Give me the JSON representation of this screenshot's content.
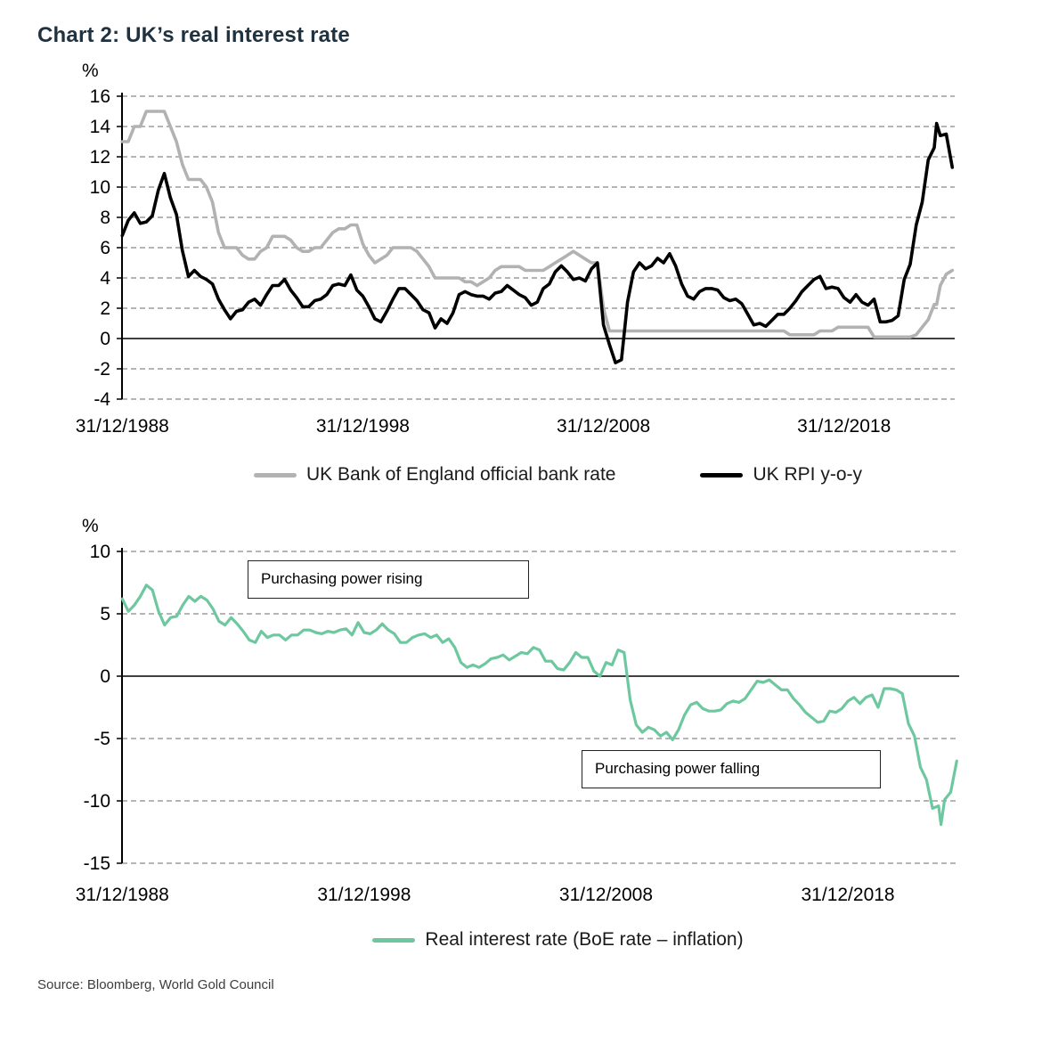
{
  "page": {
    "title": "Chart 2: UK’s real interest rate",
    "source": "Source: Bloomberg, World Gold Council"
  },
  "chart_data": [
    {
      "type": "line",
      "ylabel": "%",
      "ylim": [
        -4,
        16
      ],
      "yticks": [
        16,
        14,
        12,
        10,
        8,
        6,
        4,
        2,
        0,
        -2,
        -4
      ],
      "xlim": [
        1988.99,
        2023.6
      ],
      "xticks": [
        {
          "x": 1989,
          "label": "31/12/1988"
        },
        {
          "x": 1999,
          "label": "31/12/1998"
        },
        {
          "x": 2009,
          "label": "31/12/2008"
        },
        {
          "x": 2019,
          "label": "31/12/2018"
        }
      ],
      "grid": "dashed",
      "legend_position": "bottom",
      "x": [
        1989,
        1989.25,
        1989.5,
        1989.75,
        1990,
        1990.25,
        1990.5,
        1990.75,
        1991,
        1991.25,
        1991.5,
        1991.75,
        1992,
        1992.25,
        1992.5,
        1992.75,
        1993,
        1993.25,
        1993.5,
        1993.75,
        1994,
        1994.25,
        1994.5,
        1994.75,
        1995,
        1995.25,
        1995.5,
        1995.75,
        1996,
        1996.25,
        1996.5,
        1996.75,
        1997,
        1997.25,
        1997.5,
        1997.75,
        1998,
        1998.25,
        1998.5,
        1998.75,
        1999,
        1999.25,
        1999.5,
        1999.75,
        2000,
        2000.25,
        2000.5,
        2000.75,
        2001,
        2001.25,
        2001.5,
        2001.75,
        2002,
        2002.25,
        2002.5,
        2002.75,
        2003,
        2003.25,
        2003.5,
        2003.75,
        2004,
        2004.25,
        2004.5,
        2004.75,
        2005,
        2005.25,
        2005.5,
        2005.75,
        2006,
        2006.25,
        2006.5,
        2006.75,
        2007,
        2007.25,
        2007.5,
        2007.75,
        2008,
        2008.25,
        2008.5,
        2008.75,
        2009,
        2009.25,
        2009.5,
        2009.75,
        2010,
        2010.25,
        2010.5,
        2010.75,
        2011,
        2011.25,
        2011.5,
        2011.75,
        2012,
        2012.25,
        2012.5,
        2012.75,
        2013,
        2013.25,
        2013.5,
        2013.75,
        2014,
        2014.25,
        2014.5,
        2014.75,
        2015,
        2015.25,
        2015.5,
        2015.75,
        2016,
        2016.25,
        2016.5,
        2016.75,
        2017,
        2017.25,
        2017.5,
        2017.75,
        2018,
        2018.25,
        2018.5,
        2018.75,
        2019,
        2019.25,
        2019.5,
        2019.75,
        2020,
        2020.25,
        2020.5,
        2020.75,
        2021,
        2021.25,
        2021.5,
        2021.75,
        2022,
        2022.25,
        2022.5,
        2022.75,
        2022.85,
        2023,
        2023.25,
        2023.5
      ],
      "series": [
        {
          "name": "UK Bank of England official bank rate",
          "color": "#b2b2b2",
          "values": [
            13,
            13,
            14,
            14,
            15,
            15,
            15,
            15,
            14,
            13,
            11.5,
            10.5,
            10.5,
            10.5,
            10,
            9,
            7,
            6,
            6,
            6,
            5.5,
            5.25,
            5.25,
            5.75,
            6,
            6.75,
            6.75,
            6.75,
            6.5,
            6,
            5.75,
            5.75,
            6,
            6,
            6.5,
            7,
            7.25,
            7.25,
            7.5,
            7.5,
            6.25,
            5.5,
            5,
            5.25,
            5.5,
            6,
            6,
            6,
            6,
            5.75,
            5.25,
            4.75,
            4,
            4,
            4,
            4,
            4,
            3.75,
            3.75,
            3.5,
            3.75,
            4,
            4.5,
            4.75,
            4.75,
            4.75,
            4.75,
            4.5,
            4.5,
            4.5,
            4.5,
            4.75,
            5,
            5.25,
            5.5,
            5.75,
            5.5,
            5.25,
            5,
            5,
            2,
            0.5,
            0.5,
            0.5,
            0.5,
            0.5,
            0.5,
            0.5,
            0.5,
            0.5,
            0.5,
            0.5,
            0.5,
            0.5,
            0.5,
            0.5,
            0.5,
            0.5,
            0.5,
            0.5,
            0.5,
            0.5,
            0.5,
            0.5,
            0.5,
            0.5,
            0.5,
            0.5,
            0.5,
            0.5,
            0.5,
            0.25,
            0.25,
            0.25,
            0.25,
            0.25,
            0.5,
            0.5,
            0.5,
            0.75,
            0.75,
            0.75,
            0.75,
            0.75,
            0.75,
            0.1,
            0.1,
            0.1,
            0.1,
            0.1,
            0.1,
            0.1,
            0.25,
            0.75,
            1.25,
            2.25,
            2.25,
            3.5,
            4.25,
            4.5
          ]
        },
        {
          "name": "UK RPI y-o-y",
          "color": "#000000",
          "values": [
            6.8,
            7.8,
            8.3,
            7.6,
            7.7,
            8.1,
            9.8,
            10.9,
            9.3,
            8.2,
            5.8,
            4.1,
            4.5,
            4.1,
            3.9,
            3.6,
            2.6,
            1.9,
            1.3,
            1.8,
            1.9,
            2.4,
            2.6,
            2.2,
            2.9,
            3.5,
            3.5,
            3.9,
            3.2,
            2.7,
            2.1,
            2.1,
            2.5,
            2.6,
            2.9,
            3.5,
            3.6,
            3.5,
            4.2,
            3.2,
            2.8,
            2.1,
            1.3,
            1.1,
            1.8,
            2.6,
            3.3,
            3.3,
            2.9,
            2.5,
            1.9,
            1.7,
            0.7,
            1.3,
            1.0,
            1.7,
            2.9,
            3.1,
            2.9,
            2.8,
            2.8,
            2.6,
            3.0,
            3.1,
            3.5,
            3.2,
            2.9,
            2.7,
            2.2,
            2.4,
            3.3,
            3.6,
            4.4,
            4.8,
            4.4,
            3.9,
            4.0,
            3.8,
            4.6,
            5.0,
            0.9,
            -0.4,
            -1.6,
            -1.4,
            2.4,
            4.4,
            5.0,
            4.6,
            4.8,
            5.3,
            5.0,
            5.6,
            4.8,
            3.6,
            2.8,
            2.6,
            3.1,
            3.3,
            3.3,
            3.2,
            2.7,
            2.5,
            2.6,
            2.3,
            1.6,
            0.9,
            1.0,
            0.8,
            1.2,
            1.6,
            1.6,
            2.0,
            2.5,
            3.1,
            3.5,
            3.9,
            4.1,
            3.3,
            3.4,
            3.3,
            2.7,
            2.4,
            2.9,
            2.4,
            2.2,
            2.6,
            1.1,
            1.1,
            1.2,
            1.5,
            3.9,
            4.9,
            7.5,
            9.0,
            11.8,
            12.6,
            14.2,
            13.4,
            13.5,
            11.3
          ]
        }
      ]
    },
    {
      "type": "line",
      "ylabel": "%",
      "ylim": [
        -15,
        10
      ],
      "yticks": [
        10,
        5,
        0,
        -5,
        -10,
        -15
      ],
      "xlim": [
        1988.99,
        2023.6
      ],
      "xticks": [
        {
          "x": 1989,
          "label": "31/12/1988"
        },
        {
          "x": 1999,
          "label": "31/12/1998"
        },
        {
          "x": 2009,
          "label": "31/12/2008"
        },
        {
          "x": 2019,
          "label": "31/12/2018"
        }
      ],
      "grid": "dashed",
      "legend_position": "bottom",
      "annotations": [
        {
          "text": "Purchasing power rising"
        },
        {
          "text": "Purchasing power falling"
        }
      ],
      "x": [
        1989,
        1989.25,
        1989.5,
        1989.75,
        1990,
        1990.25,
        1990.5,
        1990.75,
        1991,
        1991.25,
        1991.5,
        1991.75,
        1992,
        1992.25,
        1992.5,
        1992.75,
        1993,
        1993.25,
        1993.5,
        1993.75,
        1994,
        1994.25,
        1994.5,
        1994.75,
        1995,
        1995.25,
        1995.5,
        1995.75,
        1996,
        1996.25,
        1996.5,
        1996.75,
        1997,
        1997.25,
        1997.5,
        1997.75,
        1998,
        1998.25,
        1998.5,
        1998.75,
        1999,
        1999.25,
        1999.5,
        1999.75,
        2000,
        2000.25,
        2000.5,
        2000.75,
        2001,
        2001.25,
        2001.5,
        2001.75,
        2002,
        2002.25,
        2002.5,
        2002.75,
        2003,
        2003.25,
        2003.5,
        2003.75,
        2004,
        2004.25,
        2004.5,
        2004.75,
        2005,
        2005.25,
        2005.5,
        2005.75,
        2006,
        2006.25,
        2006.5,
        2006.75,
        2007,
        2007.25,
        2007.5,
        2007.75,
        2008,
        2008.25,
        2008.5,
        2008.75,
        2009,
        2009.25,
        2009.5,
        2009.75,
        2010,
        2010.25,
        2010.5,
        2010.75,
        2011,
        2011.25,
        2011.5,
        2011.75,
        2012,
        2012.25,
        2012.5,
        2012.75,
        2013,
        2013.25,
        2013.5,
        2013.75,
        2014,
        2014.25,
        2014.5,
        2014.75,
        2015,
        2015.25,
        2015.5,
        2015.75,
        2016,
        2016.25,
        2016.5,
        2016.75,
        2017,
        2017.25,
        2017.5,
        2017.75,
        2018,
        2018.25,
        2018.5,
        2018.75,
        2019,
        2019.25,
        2019.5,
        2019.75,
        2020,
        2020.25,
        2020.5,
        2020.75,
        2021,
        2021.25,
        2021.5,
        2021.75,
        2022,
        2022.25,
        2022.5,
        2022.75,
        2022.85,
        2023,
        2023.25,
        2023.5
      ],
      "series": [
        {
          "name": "Real interest rate (BoE rate – inflation)",
          "color": "#6ec89f",
          "values": [
            6.2,
            5.2,
            5.7,
            6.4,
            7.3,
            6.9,
            5.2,
            4.1,
            4.7,
            4.8,
            5.7,
            6.4,
            6.0,
            6.4,
            6.1,
            5.4,
            4.4,
            4.1,
            4.7,
            4.2,
            3.6,
            2.9,
            2.7,
            3.6,
            3.1,
            3.3,
            3.3,
            2.9,
            3.3,
            3.3,
            3.7,
            3.7,
            3.5,
            3.4,
            3.6,
            3.5,
            3.7,
            3.8,
            3.3,
            4.3,
            3.5,
            3.4,
            3.7,
            4.2,
            3.7,
            3.4,
            2.7,
            2.7,
            3.1,
            3.3,
            3.4,
            3.1,
            3.3,
            2.7,
            3.0,
            2.3,
            1.1,
            0.7,
            0.9,
            0.7,
            1.0,
            1.4,
            1.5,
            1.7,
            1.3,
            1.6,
            1.9,
            1.8,
            2.3,
            2.1,
            1.2,
            1.2,
            0.6,
            0.5,
            1.1,
            1.9,
            1.5,
            1.5,
            0.4,
            0.0,
            1.1,
            0.9,
            2.1,
            1.9,
            -1.9,
            -3.9,
            -4.5,
            -4.1,
            -4.3,
            -4.8,
            -4.5,
            -5.1,
            -4.3,
            -3.1,
            -2.3,
            -2.1,
            -2.6,
            -2.8,
            -2.8,
            -2.7,
            -2.2,
            -2.0,
            -2.1,
            -1.8,
            -1.1,
            -0.4,
            -0.5,
            -0.3,
            -0.7,
            -1.1,
            -1.1,
            -1.8,
            -2.3,
            -2.9,
            -3.3,
            -3.7,
            -3.6,
            -2.8,
            -2.9,
            -2.6,
            -2.0,
            -1.7,
            -2.2,
            -1.7,
            -1.5,
            -2.5,
            -1.0,
            -1.0,
            -1.1,
            -1.4,
            -3.8,
            -4.8,
            -7.3,
            -8.3,
            -10.6,
            -10.4,
            -11.9,
            -9.9,
            -9.3,
            -6.8
          ]
        }
      ]
    }
  ]
}
